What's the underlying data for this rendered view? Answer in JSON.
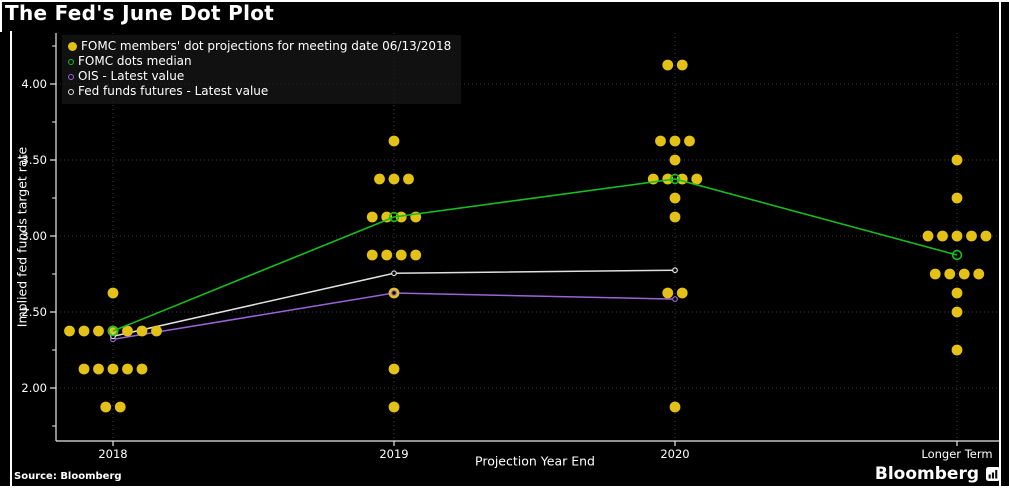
{
  "title": "The Fed's June Dot Plot",
  "source_note": "Source: Bloomberg",
  "brand": "Bloomberg",
  "colors": {
    "background": "#000000",
    "frame": "#ffffff",
    "grid": "#3c3c3c",
    "axis": "#e8e8e8",
    "dots": "#e3c117",
    "median": "#17bd20",
    "ois": "#9a64d8",
    "futures": "#e0e0e0",
    "text": "#ffffff"
  },
  "legend": {
    "items": [
      {
        "label": "FOMC members' dot projections for meeting date 06/13/2018",
        "marker": "filled-circle",
        "color_key": "dots"
      },
      {
        "label": "FOMC dots median",
        "marker": "open-circle",
        "color_key": "median"
      },
      {
        "label": "OIS - Latest value",
        "marker": "open-circle",
        "color_key": "ois"
      },
      {
        "label": "Fed funds futures - Latest value",
        "marker": "open-circle",
        "color_key": "futures"
      }
    ]
  },
  "chart_data": {
    "type": "scatter",
    "title": "The Fed's June Dot Plot",
    "xlabel": "Projection Year End",
    "ylabel": "Implied fed funds target rate",
    "categories": [
      "2018",
      "2019",
      "2020",
      "Longer Term"
    ],
    "yticks": [
      2.0,
      2.5,
      3.0,
      3.5,
      4.0
    ],
    "y_minor_ticks": [
      1.75,
      2.25,
      2.75,
      3.25,
      3.75,
      4.25
    ],
    "ylim": [
      1.65,
      4.34
    ],
    "grid": "dotted",
    "legend_position": "top-left",
    "dot_unit": "percent",
    "dot_distributions": [
      {
        "category": "2018",
        "values": [
          {
            "rate": 2.625,
            "count": 1
          },
          {
            "rate": 2.375,
            "count": 7
          },
          {
            "rate": 2.125,
            "count": 5
          },
          {
            "rate": 1.875,
            "count": 2
          }
        ]
      },
      {
        "category": "2019",
        "values": [
          {
            "rate": 3.625,
            "count": 1
          },
          {
            "rate": 3.375,
            "count": 3
          },
          {
            "rate": 3.125,
            "count": 4
          },
          {
            "rate": 2.875,
            "count": 4
          },
          {
            "rate": 2.625,
            "count": 1
          },
          {
            "rate": 2.125,
            "count": 1
          },
          {
            "rate": 1.875,
            "count": 1
          }
        ]
      },
      {
        "category": "2020",
        "values": [
          {
            "rate": 4.125,
            "count": 2
          },
          {
            "rate": 3.625,
            "count": 3
          },
          {
            "rate": 3.5,
            "count": 1
          },
          {
            "rate": 3.375,
            "count": 4
          },
          {
            "rate": 3.25,
            "count": 1
          },
          {
            "rate": 3.125,
            "count": 1
          },
          {
            "rate": 2.625,
            "count": 2
          },
          {
            "rate": 1.875,
            "count": 1
          }
        ]
      },
      {
        "category": "Longer Term",
        "values": [
          {
            "rate": 3.5,
            "count": 1
          },
          {
            "rate": 3.25,
            "count": 1
          },
          {
            "rate": 3.0,
            "count": 5
          },
          {
            "rate": 2.75,
            "count": 4
          },
          {
            "rate": 2.625,
            "count": 1
          },
          {
            "rate": 2.5,
            "count": 1
          },
          {
            "rate": 2.25,
            "count": 1
          }
        ]
      }
    ],
    "series": [
      {
        "name": "FOMC dots median",
        "color_key": "median",
        "marker": "open-circle-large",
        "categories": [
          "2018",
          "2019",
          "2020",
          "Longer Term"
        ],
        "values": [
          2.375,
          3.125,
          3.375,
          2.875
        ]
      },
      {
        "name": "Fed funds futures - Latest value",
        "color_key": "futures",
        "marker": "open-circle-small",
        "categories": [
          "2018",
          "2019",
          "2020"
        ],
        "values": [
          2.34,
          2.755,
          2.775
        ]
      },
      {
        "name": "OIS - Latest value",
        "color_key": "ois",
        "marker": "open-circle-small",
        "categories": [
          "2018",
          "2019",
          "2020"
        ],
        "values": [
          2.32,
          2.625,
          2.585
        ]
      }
    ]
  }
}
